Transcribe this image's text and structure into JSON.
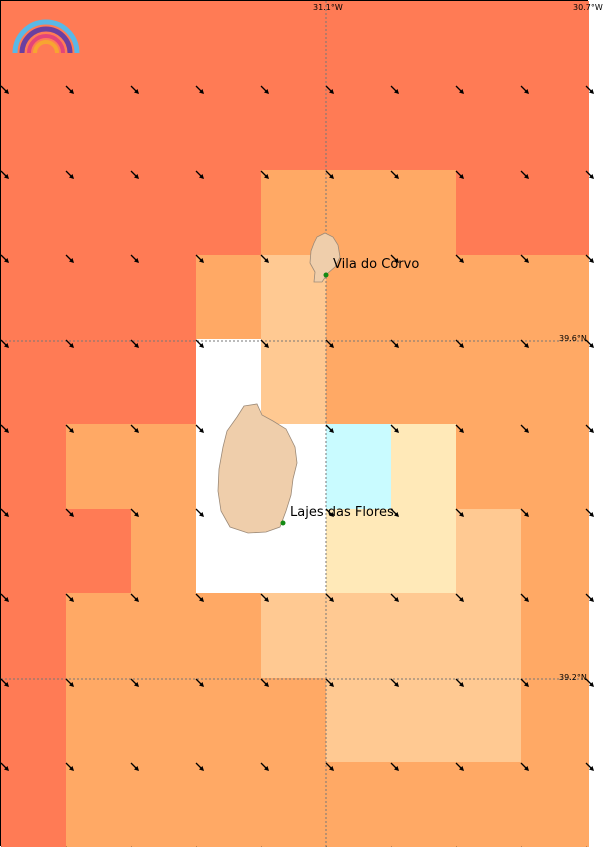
{
  "map": {
    "palette": {
      "r": "#ff7b55",
      "o": "#ffa965",
      "p": "#ffc992",
      "y": "#ffe9b8",
      "w": "#ffffff",
      "c": "#c9fbff",
      "land": "#efceab",
      "coast": "#9c8a78",
      "grid": "#777777",
      "arrow": "#000000",
      "marker": "#138a13"
    },
    "grid_rows": [
      "rrrrrrrrr",
      "rrrrrrrrr",
      "rrrrooorr",
      "rrropoooo",
      "rrrwpoooo",
      "roowwcyoo",
      "rrowwyypo",
      "roooppppo",
      "roooopppo",
      "roooooooo"
    ],
    "lon_labels": [
      "31.1°W",
      "30.7°W"
    ],
    "lat_labels": [
      "39.6°N",
      "39.2°N"
    ],
    "places": [
      {
        "name": "Vila do Corvo"
      },
      {
        "name": "Lajes das Flores"
      }
    ],
    "wind_direction": "north-west wind (arrows pointing south-east)"
  }
}
